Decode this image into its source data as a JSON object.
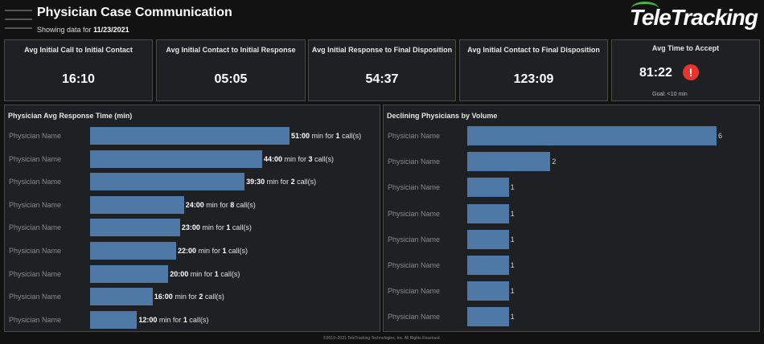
{
  "header": {
    "title": "Physician Case Communication",
    "subtitle_prefix": "Showing data for",
    "date": "11/23/2021",
    "logo": "TeleTracking"
  },
  "kpis": [
    {
      "title": "Avg Initial Call to Initial Contact",
      "value": "16:10"
    },
    {
      "title": "Avg Initial Contact to Initial Response",
      "value": "05:05"
    },
    {
      "title": "Avg Initial Response to Final Disposition",
      "value": "54:37"
    },
    {
      "title": "Avg Initial Contact to Final Disposition",
      "value": "123:09"
    }
  ],
  "accept": {
    "title": "Avg Time to Accept",
    "value": "81:22",
    "alert_icon": "!",
    "goal": "Goal:  <10 min",
    "alert_color": "#e8352c"
  },
  "response_panel": {
    "title": "Physician Avg Response Time (min)",
    "unit_text": "min for",
    "suffix": "call(s)"
  },
  "declining_panel": {
    "title": "Declining Physicians by Volume"
  },
  "chart_data": [
    {
      "type": "bar",
      "title": "Physician Avg Response Time (min)",
      "orientation": "horizontal",
      "categories": [
        "Physician Name",
        "Physician Name",
        "Physician Name",
        "Physician Name",
        "Physician Name",
        "Physician Name",
        "Physician Name",
        "Physician Name",
        "Physician Name"
      ],
      "values": [
        51,
        44,
        39.5,
        24,
        23,
        22,
        20,
        16,
        12
      ],
      "value_labels": [
        "51:00",
        "44:00",
        "39:30",
        "24:00",
        "23:00",
        "22:00",
        "20:00",
        "16:00",
        "12:00"
      ],
      "calls": [
        "1",
        "3",
        "2",
        "8",
        "1",
        "1",
        "1",
        "2",
        "1"
      ],
      "xlim": [
        0,
        51
      ],
      "color": "#4e79a7"
    },
    {
      "type": "bar",
      "title": "Declining Physicians by Volume",
      "orientation": "horizontal",
      "categories": [
        "Physician Name",
        "Physician Name",
        "Physician Name",
        "Physician Name",
        "Physician Name",
        "Physician Name",
        "Physician Name",
        "Physician Name"
      ],
      "values": [
        6,
        2,
        1,
        1,
        1,
        1,
        1,
        1
      ],
      "xlim": [
        0,
        6
      ],
      "color": "#4e79a7"
    }
  ],
  "footer": "©2019–2021 TeleTracking Technologies, Inc.  All Rights Reserved.",
  "colors": {
    "background": "#121212",
    "panel": "#1f2023",
    "accent": "#44b549"
  }
}
